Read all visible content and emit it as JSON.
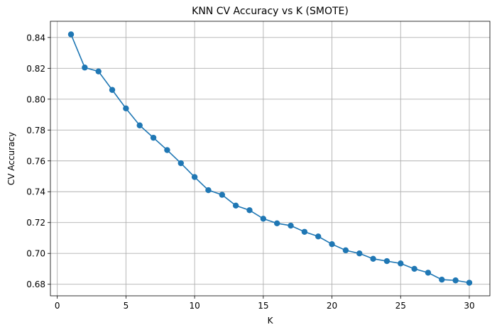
{
  "chart_data": {
    "type": "line",
    "title": "KNN CV Accuracy vs K (SMOTE)",
    "xlabel": "K",
    "ylabel": "CV Accuracy",
    "xlim": [
      -0.5,
      31.5
    ],
    "ylim": [
      0.6725,
      0.8505
    ],
    "xticks": [
      0,
      5,
      10,
      15,
      20,
      25,
      30
    ],
    "yticks": [
      0.68,
      0.7,
      0.72,
      0.74,
      0.76,
      0.78,
      0.8,
      0.82,
      0.84
    ],
    "grid": true,
    "colors": {
      "series": "#1f77b4"
    },
    "series": [
      {
        "x": [
          1,
          2,
          3,
          4,
          5,
          6,
          7,
          8,
          9,
          10,
          11,
          12,
          13,
          14,
          15,
          16,
          17,
          18,
          19,
          20,
          21,
          22,
          23,
          24,
          25,
          26,
          27,
          28,
          29,
          30
        ],
        "y": [
          0.842,
          0.8205,
          0.818,
          0.806,
          0.794,
          0.783,
          0.775,
          0.767,
          0.7585,
          0.7495,
          0.741,
          0.738,
          0.731,
          0.728,
          0.7225,
          0.7195,
          0.718,
          0.714,
          0.711,
          0.706,
          0.702,
          0.7,
          0.6965,
          0.695,
          0.6935,
          0.69,
          0.6875,
          0.683,
          0.6825,
          0.681
        ]
      }
    ]
  }
}
